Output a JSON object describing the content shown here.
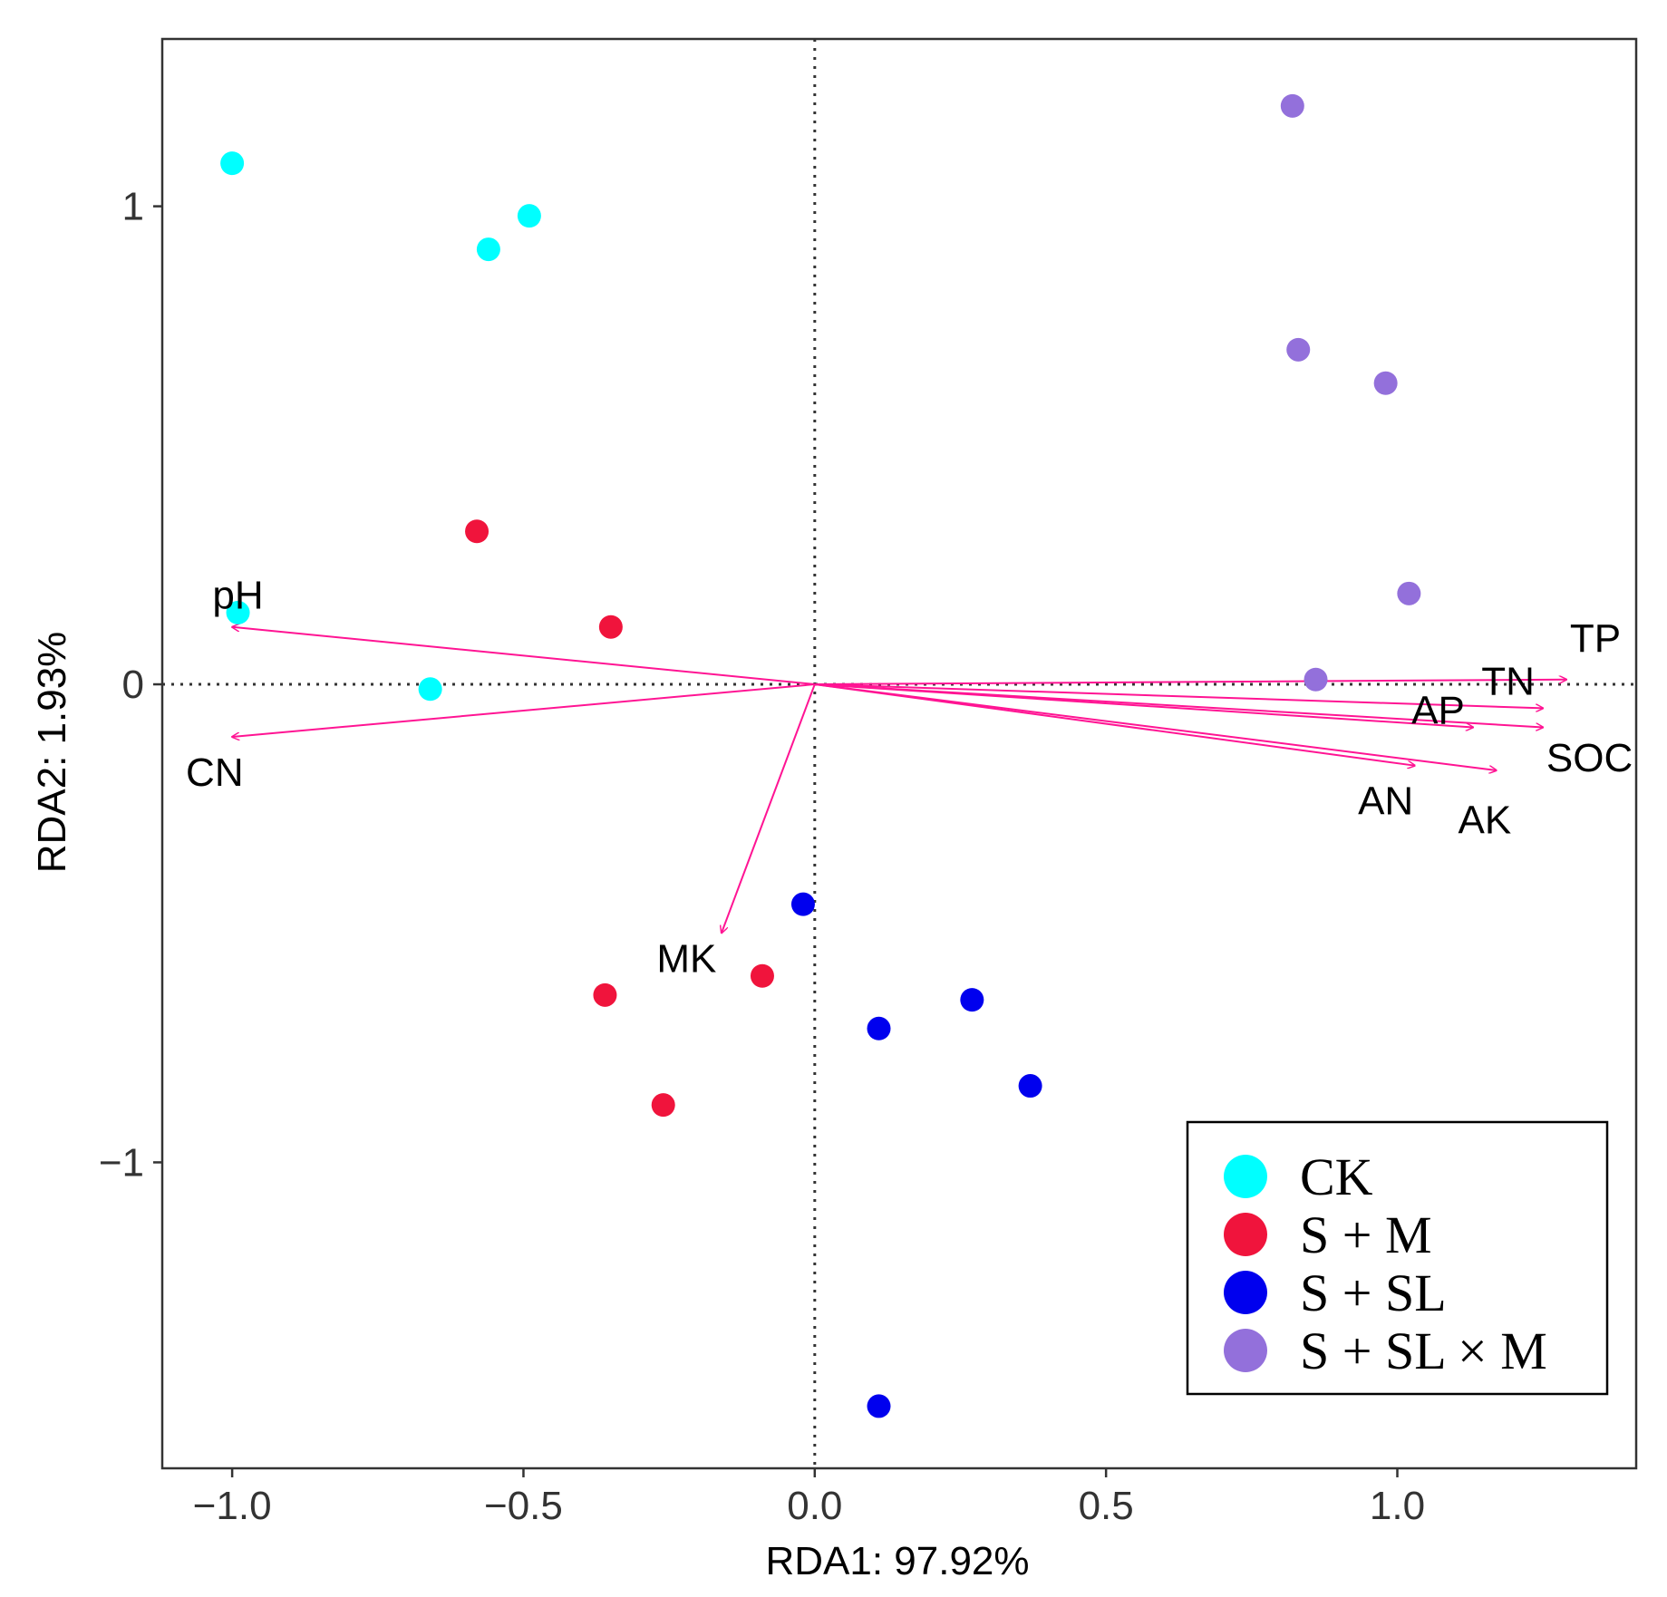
{
  "chart_data": {
    "type": "scatter",
    "title": "",
    "xlabel": "RDA1: 97.92%",
    "ylabel": "RDA2: 1.93%",
    "xlim": [
      -1.12,
      1.41
    ],
    "ylim": [
      -1.64,
      1.35
    ],
    "x_ticks": [
      {
        "value": -1.0,
        "label": "−1.0"
      },
      {
        "value": -0.5,
        "label": "−0.5"
      },
      {
        "value": 0.0,
        "label": "0.0"
      },
      {
        "value": 0.5,
        "label": "0.5"
      },
      {
        "value": 1.0,
        "label": "1.0"
      }
    ],
    "y_ticks": [
      {
        "value": 1,
        "label": "1"
      },
      {
        "value": 0,
        "label": "0"
      },
      {
        "value": -1,
        "label": "−1"
      }
    ],
    "grid": false,
    "reference_lines": {
      "x": 0,
      "y": 0,
      "style": "dotted"
    },
    "arrow_color": "#ff1493",
    "series": [
      {
        "name": "CK",
        "color": "#00ffff",
        "points": [
          {
            "x": -1.0,
            "y": 1.09
          },
          {
            "x": -0.56,
            "y": 0.91
          },
          {
            "x": -0.49,
            "y": 0.98
          },
          {
            "x": -0.99,
            "y": 0.15
          },
          {
            "x": -0.66,
            "y": -0.01
          }
        ]
      },
      {
        "name": "S + M",
        "color": "#f0143c",
        "points": [
          {
            "x": -0.58,
            "y": 0.32
          },
          {
            "x": -0.35,
            "y": 0.12
          },
          {
            "x": -0.09,
            "y": -0.61
          },
          {
            "x": -0.36,
            "y": -0.65
          },
          {
            "x": -0.26,
            "y": -0.88
          }
        ]
      },
      {
        "name": "S + SL",
        "color": "#0000ee",
        "points": [
          {
            "x": -0.02,
            "y": -0.46
          },
          {
            "x": 0.27,
            "y": -0.66
          },
          {
            "x": 0.11,
            "y": -0.72
          },
          {
            "x": 0.37,
            "y": -0.84
          },
          {
            "x": 0.11,
            "y": -1.51
          }
        ]
      },
      {
        "name": "S + SL × M",
        "color": "#9370db",
        "points": [
          {
            "x": 0.82,
            "y": 1.21
          },
          {
            "x": 0.83,
            "y": 0.7
          },
          {
            "x": 0.98,
            "y": 0.63
          },
          {
            "x": 1.02,
            "y": 0.19
          },
          {
            "x": 0.86,
            "y": 0.01
          }
        ]
      }
    ],
    "arrows": [
      {
        "name": "pH",
        "x": -1.0,
        "y": 0.12
      },
      {
        "name": "CN",
        "x": -1.0,
        "y": -0.11
      },
      {
        "name": "TP",
        "x": 1.29,
        "y": 0.01
      },
      {
        "name": "TN",
        "x": 1.25,
        "y": -0.05
      },
      {
        "name": "AP",
        "x": 1.13,
        "y": -0.09
      },
      {
        "name": "SOC",
        "x": 1.25,
        "y": -0.09
      },
      {
        "name": "AN",
        "x": 1.03,
        "y": -0.17
      },
      {
        "name": "AK",
        "x": 1.17,
        "y": -0.18
      },
      {
        "name": "MK",
        "x": -0.16,
        "y": -0.52
      }
    ],
    "arrow_labels": [
      {
        "name": "pH",
        "text": "pH",
        "x": -0.99,
        "y": 0.18
      },
      {
        "name": "CN",
        "text": "CN",
        "x": -1.03,
        "y": -0.19
      },
      {
        "name": "TP",
        "text": "TP",
        "x": 1.34,
        "y": 0.09
      },
      {
        "name": "TN",
        "text": "TN",
        "x": 1.19,
        "y": 0.0
      },
      {
        "name": "AP",
        "text": "AP",
        "x": 1.07,
        "y": -0.06
      },
      {
        "name": "SOC",
        "text": "SOC",
        "x": 1.33,
        "y": -0.16
      },
      {
        "name": "AN",
        "text": "AN",
        "x": 0.98,
        "y": -0.25
      },
      {
        "name": "AK",
        "text": "AK",
        "x": 1.15,
        "y": -0.29
      },
      {
        "name": "MK",
        "text": "MK",
        "x": -0.22,
        "y": -0.58
      }
    ],
    "legend": {
      "position": "bottom-right",
      "entries": [
        {
          "label": "CK",
          "color": "#00ffff"
        },
        {
          "label": "S + M",
          "color": "#f0143c"
        },
        {
          "label": "S + SL",
          "color": "#0000ee"
        },
        {
          "label": "S + SL × M",
          "color": "#9370db"
        }
      ]
    }
  }
}
